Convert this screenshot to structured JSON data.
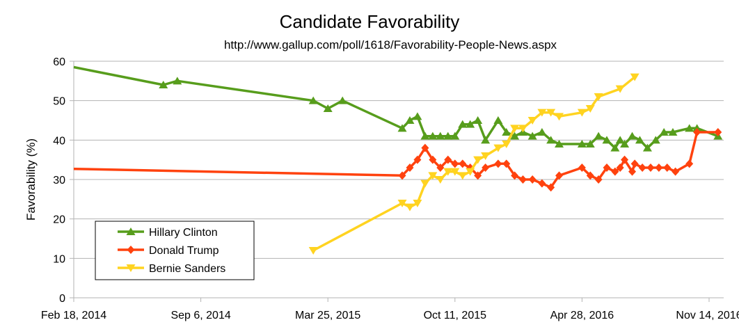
{
  "chart_data": {
    "type": "line",
    "title": "Candidate Favorability",
    "subtitle": "http://www.gallup.com/poll/1618/Favorability-People-News.aspx",
    "xlabel": "",
    "ylabel": "Favorability (%)",
    "xlim": [
      "2014-02-18",
      "2016-12-07"
    ],
    "ylim": [
      0,
      60
    ],
    "yticks": [
      0,
      10,
      20,
      30,
      40,
      50,
      60
    ],
    "xticks": [
      {
        "date": "2014-02-18",
        "label": "Feb 18, 2014"
      },
      {
        "date": "2014-09-06",
        "label": "Sep 6, 2014"
      },
      {
        "date": "2015-03-25",
        "label": "Mar 25, 2015"
      },
      {
        "date": "2015-10-11",
        "label": "Oct 11, 2015"
      },
      {
        "date": "2016-04-28",
        "label": "Apr 28, 2016"
      },
      {
        "date": "2016-11-14",
        "label": "Nov 14, 2016"
      }
    ],
    "grid": "horizontal",
    "legend_position": "bottom-left",
    "series": [
      {
        "name": "Hillary Clinton",
        "color": "#579D1C",
        "marker": "triangle-up",
        "points": [
          [
            "2014-02-18",
            58.5
          ],
          [
            "2014-07-09",
            54
          ],
          [
            "2014-07-31",
            55
          ],
          [
            "2015-03-02",
            50
          ],
          [
            "2015-03-25",
            48
          ],
          [
            "2015-04-17",
            50
          ],
          [
            "2015-07-20",
            43
          ],
          [
            "2015-08-01",
            45
          ],
          [
            "2015-08-13",
            46
          ],
          [
            "2015-08-25",
            41
          ],
          [
            "2015-09-06",
            41
          ],
          [
            "2015-09-18",
            41
          ],
          [
            "2015-09-30",
            41
          ],
          [
            "2015-10-11",
            41
          ],
          [
            "2015-10-23",
            44
          ],
          [
            "2015-11-04",
            44
          ],
          [
            "2015-11-16",
            45
          ],
          [
            "2015-11-28",
            40
          ],
          [
            "2015-12-18",
            45
          ],
          [
            "2015-12-31",
            42
          ],
          [
            "2016-01-13",
            41
          ],
          [
            "2016-01-26",
            42
          ],
          [
            "2016-02-10",
            41
          ],
          [
            "2016-02-25",
            42
          ],
          [
            "2016-03-10",
            40
          ],
          [
            "2016-03-23",
            39
          ],
          [
            "2016-04-28",
            39
          ],
          [
            "2016-05-11",
            39
          ],
          [
            "2016-05-24",
            41
          ],
          [
            "2016-06-06",
            40
          ],
          [
            "2016-06-19",
            38
          ],
          [
            "2016-06-27",
            40
          ],
          [
            "2016-07-04",
            39
          ],
          [
            "2016-07-16",
            41
          ],
          [
            "2016-07-28",
            40
          ],
          [
            "2016-08-09",
            38
          ],
          [
            "2016-08-22",
            40
          ],
          [
            "2016-09-04",
            42
          ],
          [
            "2016-09-18",
            42
          ],
          [
            "2016-10-14",
            43
          ],
          [
            "2016-10-26",
            43
          ],
          [
            "2016-11-28",
            41
          ]
        ]
      },
      {
        "name": "Donald Trump",
        "color": "#FF420E",
        "marker": "diamond",
        "points": [
          [
            "2014-02-18",
            32.7
          ],
          [
            "2015-07-20",
            31
          ],
          [
            "2015-08-01",
            33
          ],
          [
            "2015-08-13",
            35
          ],
          [
            "2015-08-25",
            38
          ],
          [
            "2015-09-06",
            35
          ],
          [
            "2015-09-18",
            33
          ],
          [
            "2015-09-30",
            35
          ],
          [
            "2015-10-11",
            34
          ],
          [
            "2015-10-23",
            34
          ],
          [
            "2015-11-04",
            33
          ],
          [
            "2015-11-16",
            31
          ],
          [
            "2015-11-28",
            33
          ],
          [
            "2015-12-18",
            34
          ],
          [
            "2015-12-31",
            34
          ],
          [
            "2016-01-13",
            31
          ],
          [
            "2016-01-26",
            30
          ],
          [
            "2016-02-10",
            30
          ],
          [
            "2016-02-25",
            29
          ],
          [
            "2016-03-10",
            28
          ],
          [
            "2016-03-23",
            31
          ],
          [
            "2016-04-28",
            33
          ],
          [
            "2016-05-11",
            31
          ],
          [
            "2016-05-24",
            30
          ],
          [
            "2016-06-06",
            33
          ],
          [
            "2016-06-19",
            32
          ],
          [
            "2016-06-27",
            33
          ],
          [
            "2016-07-04",
            35
          ],
          [
            "2016-07-16",
            32
          ],
          [
            "2016-07-20",
            34
          ],
          [
            "2016-08-01",
            33
          ],
          [
            "2016-08-14",
            33
          ],
          [
            "2016-08-27",
            33
          ],
          [
            "2016-09-09",
            33
          ],
          [
            "2016-09-22",
            32
          ],
          [
            "2016-10-14",
            34
          ],
          [
            "2016-10-26",
            42
          ],
          [
            "2016-11-28",
            42
          ]
        ]
      },
      {
        "name": "Bernie Sanders",
        "color": "#FFD320",
        "marker": "triangle-down",
        "points": [
          [
            "2015-03-02",
            12
          ],
          [
            "2015-07-20",
            24
          ],
          [
            "2015-08-01",
            23
          ],
          [
            "2015-08-13",
            24
          ],
          [
            "2015-08-25",
            29
          ],
          [
            "2015-09-06",
            31
          ],
          [
            "2015-09-18",
            30
          ],
          [
            "2015-09-30",
            32
          ],
          [
            "2015-10-11",
            32
          ],
          [
            "2015-10-23",
            31
          ],
          [
            "2015-11-04",
            32
          ],
          [
            "2015-11-16",
            35
          ],
          [
            "2015-11-28",
            36
          ],
          [
            "2015-12-18",
            38
          ],
          [
            "2015-12-31",
            39
          ],
          [
            "2016-01-13",
            43
          ],
          [
            "2016-01-26",
            43
          ],
          [
            "2016-02-10",
            45
          ],
          [
            "2016-02-25",
            47
          ],
          [
            "2016-03-10",
            47
          ],
          [
            "2016-03-23",
            46
          ],
          [
            "2016-04-28",
            47
          ],
          [
            "2016-05-11",
            48
          ],
          [
            "2016-05-24",
            51
          ],
          [
            "2016-06-27",
            53
          ],
          [
            "2016-07-20",
            56
          ]
        ]
      }
    ]
  }
}
